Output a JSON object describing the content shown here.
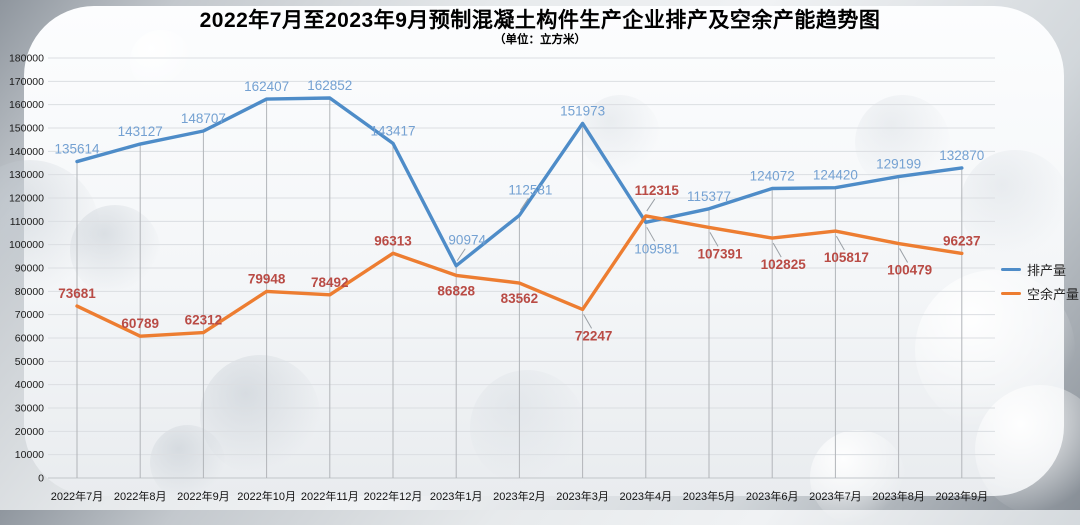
{
  "page": {
    "title": "2022年7月至2023年9月预制混凝土构件生产企业排产及空余产能趋势图",
    "subtitle": "（单位：立方米）"
  },
  "legend": {
    "items": [
      {
        "label": "排产量"
      },
      {
        "label": "空余产量"
      }
    ]
  },
  "colors": {
    "scheduled_line": "#4e8cc8",
    "scheduled_label": "#74a1d2",
    "spare_line": "#ed7d31",
    "spare_label": "#b94b45",
    "grid": "#dbdee2",
    "axis": "#c2c6ca",
    "drop_line": "#b2b5b9",
    "leader": "#9aa0a6"
  },
  "chart_data": {
    "type": "line",
    "title": "2022年7月至2023年9月预制混凝土构件生产企业排产及空余产能趋势图",
    "subtitle": "（单位：立方米）",
    "unit": "立方米",
    "categories": [
      "2022年7月",
      "2022年8月",
      "2022年9月",
      "2022年10月",
      "2022年11月",
      "2022年12月",
      "2023年1月",
      "2023年2月",
      "2023年3月",
      "2023年4月",
      "2023年5月",
      "2023年6月",
      "2023年7月",
      "2023年8月",
      "2023年9月"
    ],
    "series": [
      {
        "name": "排产量",
        "color": "#4e8cc8",
        "label_color": "#74a1d2",
        "bold_labels": false,
        "values": [
          135614,
          143127,
          148707,
          162407,
          162852,
          143417,
          90974,
          112581,
          151973,
          109581,
          115377,
          124072,
          124420,
          129199,
          132870
        ],
        "label_side": [
          "above",
          "above",
          "above",
          "above",
          "above",
          "above",
          "above",
          "above",
          "above",
          "below",
          "above",
          "above",
          "above",
          "above",
          "above"
        ],
        "leader_indices": [
          6,
          7,
          9
        ]
      },
      {
        "name": "空余产量",
        "color": "#ed7d31",
        "label_color": "#b94b45",
        "bold_labels": true,
        "values": [
          73681,
          60789,
          62312,
          79948,
          78492,
          96313,
          86828,
          83562,
          72247,
          112315,
          107391,
          102825,
          105817,
          100479,
          96237
        ],
        "label_side": [
          "above",
          "above",
          "above",
          "above",
          "above",
          "above",
          "below",
          "below",
          "below",
          "above",
          "below",
          "below",
          "below",
          "below",
          "above"
        ],
        "leader_indices": [
          8,
          9,
          10,
          11,
          12,
          13
        ]
      }
    ],
    "ylim": [
      0,
      180000
    ],
    "y_tick_step": 10000,
    "grid": true,
    "legend_position": "right"
  }
}
